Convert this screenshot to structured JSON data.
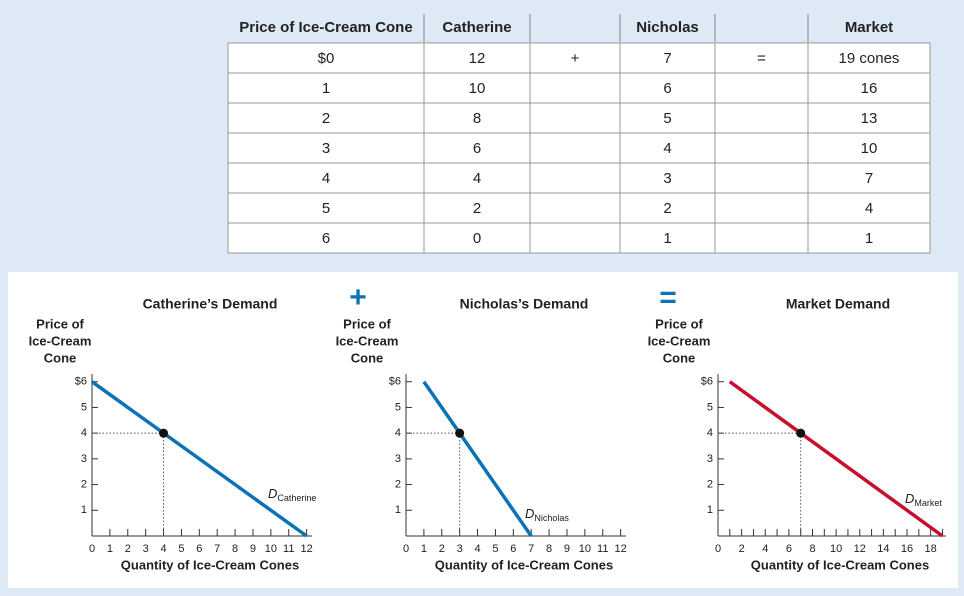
{
  "table": {
    "headers": [
      "Price of Ice-Cream Cone",
      "Catherine",
      "Nicholas",
      "Market"
    ],
    "operators": [
      "+",
      "="
    ],
    "rows": [
      [
        "$0",
        12,
        7,
        "19 cones"
      ],
      [
        1,
        10,
        6,
        16
      ],
      [
        2,
        8,
        5,
        13
      ],
      [
        3,
        6,
        4,
        10
      ],
      [
        4,
        4,
        3,
        7
      ],
      [
        5,
        2,
        2,
        4
      ],
      [
        6,
        0,
        1,
        1
      ]
    ]
  },
  "operators": [
    "+",
    "="
  ],
  "chart_data": [
    {
      "type": "line",
      "title": "Catherine’s Demand",
      "ylabel": [
        "Price of",
        "Ice-Cream",
        "Cone"
      ],
      "xlabel": "Quantity of Ice-Cream Cones",
      "series": [
        {
          "name": "D",
          "name_sub": "Catherine",
          "color": "#0a72b5",
          "x": [
            0,
            12
          ],
          "values": [
            6,
            0
          ]
        }
      ],
      "point": {
        "x": 4,
        "y": 4
      },
      "xlim": [
        0,
        12.3
      ],
      "xticks": [
        0,
        1,
        2,
        3,
        4,
        5,
        6,
        7,
        8,
        9,
        10,
        11,
        12
      ],
      "ylim": [
        0,
        6.3
      ],
      "yticks": [
        1,
        2,
        3,
        4,
        5,
        {
          "value": 6,
          "label": "$6"
        }
      ]
    },
    {
      "type": "line",
      "title": "Nicholas’s Demand",
      "ylabel": [
        "Price of",
        "Ice-Cream",
        "Cone"
      ],
      "xlabel": "Quantity of Ice-Cream Cones",
      "series": [
        {
          "name": "D",
          "name_sub": "Nicholas",
          "color": "#0a72b5",
          "x": [
            1,
            7
          ],
          "values": [
            6,
            0
          ]
        }
      ],
      "point": {
        "x": 3,
        "y": 4
      },
      "xlim": [
        0,
        12.3
      ],
      "xticks": [
        0,
        1,
        2,
        3,
        4,
        5,
        6,
        7,
        8,
        9,
        10,
        11,
        12
      ],
      "ylim": [
        0,
        6.3
      ],
      "yticks": [
        1,
        2,
        3,
        4,
        5,
        {
          "value": 6,
          "label": "$6"
        }
      ]
    },
    {
      "type": "line",
      "title": "Market Demand",
      "ylabel": [
        "Price of",
        "Ice-Cream",
        "Cone"
      ],
      "xlabel": "Quantity of Ice-Cream Cones",
      "series": [
        {
          "name": "D",
          "name_sub": "Market",
          "color": "#c8102e",
          "x": [
            1,
            19
          ],
          "values": [
            6,
            0
          ]
        }
      ],
      "point": {
        "x": 7,
        "y": 4
      },
      "xlim": [
        0,
        19.3
      ],
      "xticks": [
        0,
        2,
        4,
        6,
        8,
        10,
        12,
        14,
        16,
        18
      ],
      "xticks_minor": [
        1,
        3,
        5,
        7,
        9,
        11,
        13,
        15,
        17,
        19
      ],
      "ylim": [
        0,
        6.3
      ],
      "yticks": [
        1,
        2,
        3,
        4,
        5,
        {
          "value": 6,
          "label": "$6"
        }
      ]
    }
  ]
}
